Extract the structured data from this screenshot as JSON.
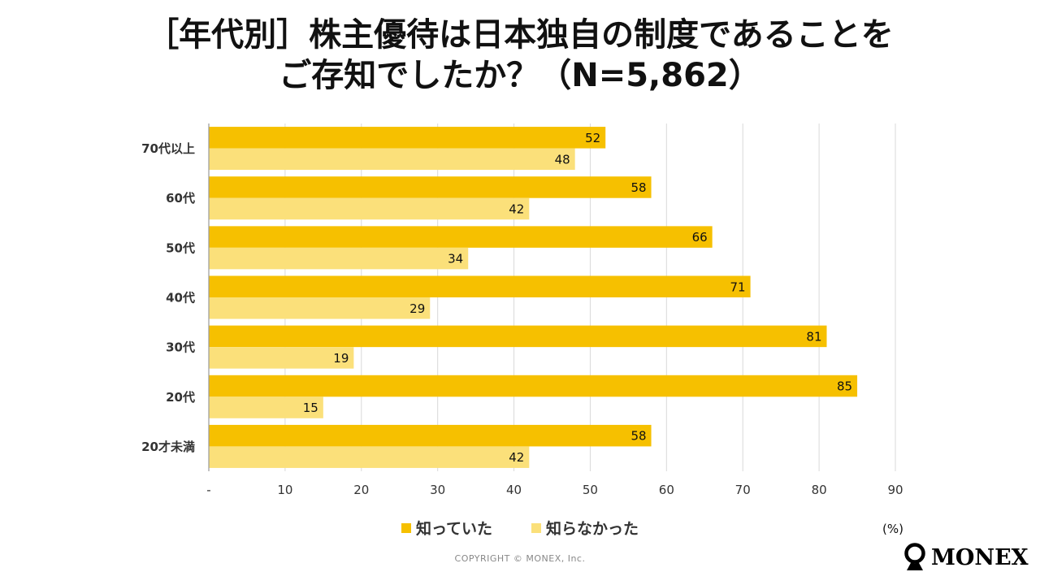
{
  "title": {
    "line1": "［年代別］株主優待は日本独自の制度であることを",
    "line2": "ご存知でしたか？（N=5,862）"
  },
  "chart_data": {
    "type": "bar",
    "orientation": "horizontal",
    "categories": [
      "70代以上",
      "60代",
      "50代",
      "40代",
      "30代",
      "20代",
      "20才未満"
    ],
    "series": [
      {
        "name": "知っていた",
        "color": "#F6C000",
        "values": [
          52,
          58,
          66,
          71,
          81,
          85,
          58
        ]
      },
      {
        "name": "知らなかった",
        "color": "#FBE07A",
        "values": [
          48,
          42,
          34,
          29,
          19,
          15,
          42
        ]
      }
    ],
    "xlim": [
      0,
      90
    ],
    "xticks": [
      "-",
      "10",
      "20",
      "30",
      "40",
      "50",
      "60",
      "70",
      "80",
      "90"
    ],
    "unit": "(%)",
    "grid": true,
    "legend_position": "bottom"
  },
  "legend": {
    "items": [
      {
        "label": "知っていた",
        "color": "#F6C000"
      },
      {
        "label": "知らなかった",
        "color": "#FBE07A"
      }
    ]
  },
  "unit_label": "(%)",
  "copyright": "COPYRIGHT © MONEX, Inc.",
  "logo": {
    "text": "MONEX"
  }
}
